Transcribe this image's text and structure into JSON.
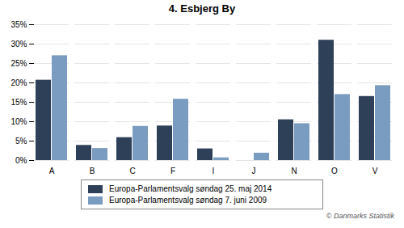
{
  "chart_data": {
    "type": "bar",
    "title": "4. Esbjerg By",
    "categories": [
      "A",
      "B",
      "C",
      "F",
      "I",
      "J",
      "N",
      "O",
      "V"
    ],
    "series": [
      {
        "name": "Europa-Parlamentsvalg søndag  25. maj 2014",
        "color": "#2E4057",
        "values": [
          20.7,
          3.9,
          5.9,
          8.9,
          3.0,
          0.0,
          10.5,
          31.0,
          16.5
        ]
      },
      {
        "name": "Europa-Parlamentsvalg søndag  7. juni 2009",
        "color": "#7A9CC0",
        "values": [
          27.0,
          3.1,
          8.8,
          15.8,
          0.7,
          1.9,
          9.5,
          17.0,
          19.3
        ]
      }
    ],
    "ylim": [
      0,
      35
    ],
    "yticks": [
      {
        "value": 0,
        "label": "0%"
      },
      {
        "value": 5,
        "label": "5%"
      },
      {
        "value": 10,
        "label": "10%"
      },
      {
        "value": 15,
        "label": "15%"
      },
      {
        "value": 20,
        "label": "20%"
      },
      {
        "value": 25,
        "label": "25%"
      },
      {
        "value": 30,
        "label": "30%"
      },
      {
        "value": 35,
        "label": "35%"
      }
    ],
    "grid": true,
    "legend": "bottom",
    "annotations": [
      "© Danmarks Statistik"
    ]
  }
}
